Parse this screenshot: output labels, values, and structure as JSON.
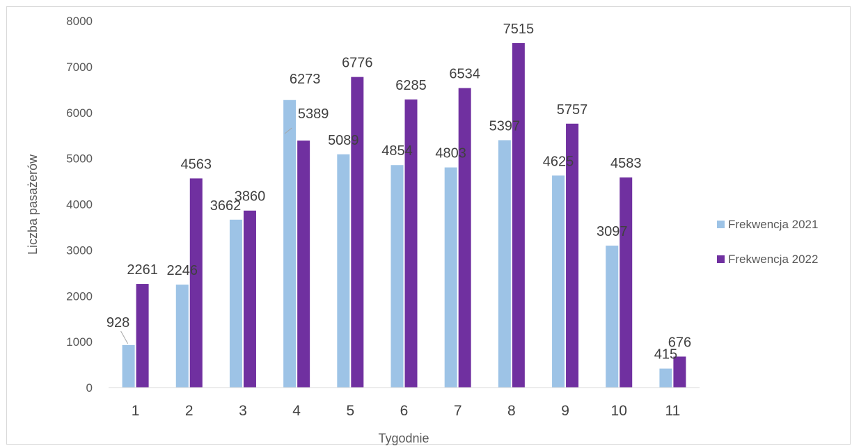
{
  "chart_data": {
    "type": "bar",
    "title": "",
    "xlabel": "Tygodnie",
    "ylabel": "Liczba pasażerów",
    "ylim": [
      0,
      8000
    ],
    "yticks": [
      "0",
      "1000",
      "2000",
      "3000",
      "4000",
      "5000",
      "6000",
      "7000",
      "8000"
    ],
    "categories": [
      "1",
      "2",
      "3",
      "4",
      "5",
      "6",
      "7",
      "8",
      "9",
      "10",
      "11"
    ],
    "series": [
      {
        "name": "Frekwencja 2021",
        "color": "#9dc3e6",
        "values": [
          928,
          2246,
          3662,
          6273,
          5089,
          4854,
          4803,
          5397,
          4625,
          3097,
          415
        ]
      },
      {
        "name": "Frekwencja 2022",
        "color": "#7030a0",
        "values": [
          2261,
          4563,
          3860,
          5389,
          6776,
          6285,
          6534,
          7515,
          5757,
          4583,
          676
        ]
      }
    ],
    "grid": false,
    "legend_position": "right",
    "data_labels": true
  }
}
